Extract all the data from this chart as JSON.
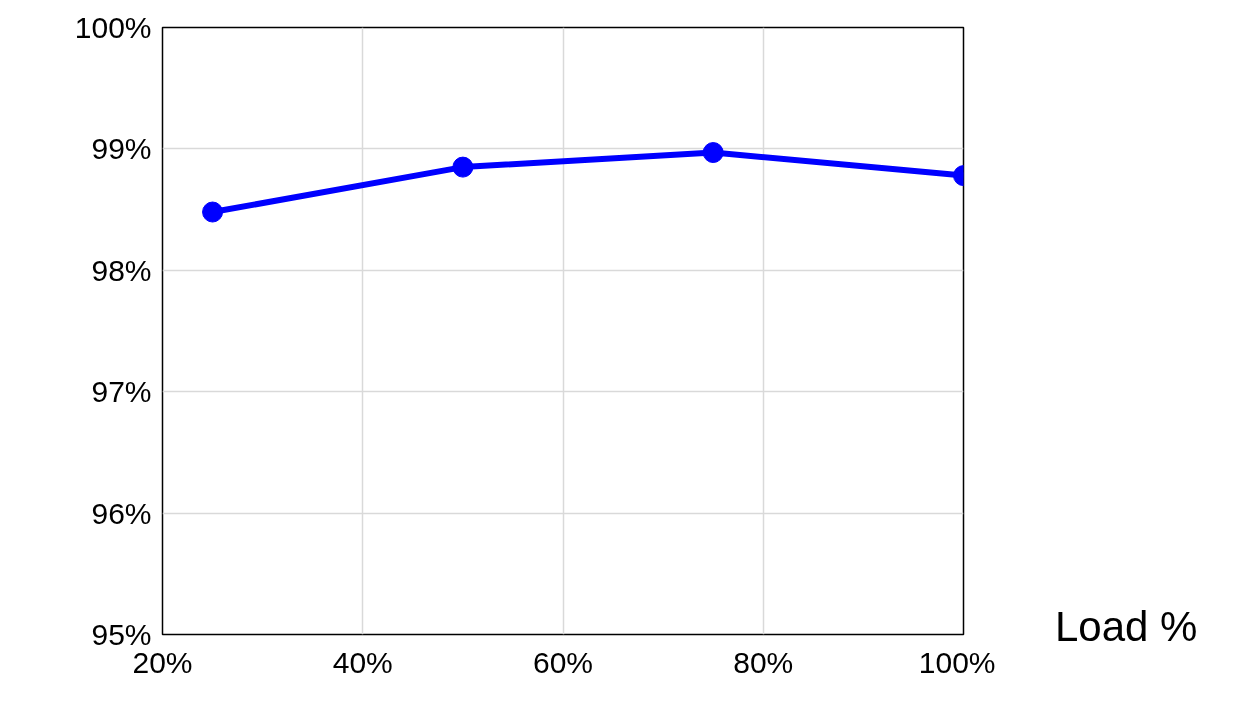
{
  "chart_data": {
    "type": "line",
    "xlabel": "Load %",
    "x": [
      25,
      50,
      75,
      100
    ],
    "series": [
      {
        "color": "#0000ff",
        "values": [
          98.48,
          98.85,
          98.97,
          98.78
        ]
      }
    ],
    "xlim": [
      20,
      100
    ],
    "ylim": [
      95,
      100
    ],
    "xticks": [
      {
        "value": 20,
        "label": "20%"
      },
      {
        "value": 40,
        "label": "40%"
      },
      {
        "value": 60,
        "label": "60%"
      },
      {
        "value": 80,
        "label": "80%"
      },
      {
        "value": 100,
        "label": "100%"
      }
    ],
    "yticks": [
      {
        "value": 95,
        "label": "95%"
      },
      {
        "value": 96,
        "label": "96%"
      },
      {
        "value": 97,
        "label": "97%"
      },
      {
        "value": 98,
        "label": "98%"
      },
      {
        "value": 99,
        "label": "99%"
      },
      {
        "value": 100,
        "label": "100%"
      }
    ],
    "grid": true,
    "marker": "circle",
    "line_style": "solid"
  }
}
